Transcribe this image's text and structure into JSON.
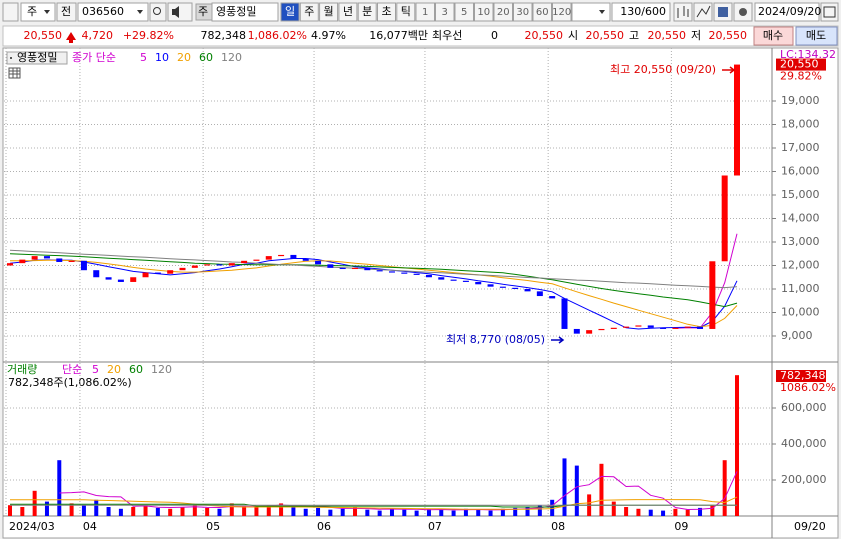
{
  "toolbar": {
    "market": "주",
    "scope": "전",
    "code": "036560",
    "name_tag": "주",
    "name": "영풍정밀",
    "periods": [
      "일",
      "주",
      "월",
      "년",
      "분",
      "초",
      "틱"
    ],
    "selected_period": 0,
    "intervals": [
      "1",
      "3",
      "5",
      "10",
      "20",
      "30",
      "60",
      "120"
    ],
    "count": "130/600",
    "date": "2024/09/20"
  },
  "info_bar": {
    "price": "20,550",
    "change": "4,720",
    "change_pct": "+29.82%",
    "volume": "782,348",
    "volume_pct": "1,086.02%",
    "turnover": "4.97%",
    "amount": "16,077백만",
    "best_label": "최우선",
    "best_qty": "0",
    "best_price": "20,550",
    "open_label": "시",
    "open": "20,550",
    "high_label": "고",
    "high": "20,550",
    "low_label": "저",
    "low": "20,550",
    "buy": "매수",
    "sell": "매도"
  },
  "chart_data": [
    {
      "type": "candlestick",
      "title": "영풍정밀",
      "legend_label": "종가 단순",
      "up_color": "#ff0000",
      "down_color": "#0000ff",
      "open": [
        12000,
        12100,
        12250,
        12400,
        12300,
        12150,
        12200,
        11800,
        11500,
        11400,
        11300,
        11500,
        11700,
        11650,
        11800,
        11900,
        12000,
        12050,
        12000,
        12100,
        12200,
        12250,
        12400,
        12450,
        12300,
        12200,
        12050,
        11900,
        11850,
        11900,
        11800,
        11750,
        11700,
        11650,
        11600,
        11500,
        11400,
        11350,
        11300,
        11200,
        11100,
        11050,
        11000,
        10900,
        10700,
        10600,
        9300,
        9100,
        9250,
        9300,
        9350,
        9400,
        9450,
        9350,
        9300,
        9350,
        9400,
        9300,
        12180,
        15830
      ],
      "close": [
        12100,
        12250,
        12400,
        12300,
        12150,
        12200,
        11800,
        11500,
        11400,
        11300,
        11500,
        11700,
        11650,
        11800,
        11900,
        12000,
        12050,
        12000,
        12100,
        12200,
        12250,
        12400,
        12450,
        12300,
        12200,
        12050,
        11900,
        11850,
        11900,
        11800,
        11750,
        11700,
        11650,
        11600,
        11500,
        11400,
        11350,
        11300,
        11200,
        11100,
        11050,
        11000,
        10900,
        10700,
        10600,
        9300,
        9100,
        9250,
        9300,
        9350,
        9400,
        9450,
        9350,
        9300,
        9350,
        9400,
        9300,
        12180,
        15830,
        20550
      ],
      "series": [
        {
          "name": "5",
          "color": "#d000d0",
          "values": [
            null,
            null,
            null,
            null,
            null,
            null,
            null,
            null,
            null,
            null,
            null,
            null,
            null,
            null,
            null,
            null,
            null,
            null,
            null,
            null,
            null,
            null,
            null,
            null,
            null,
            null,
            null,
            null,
            null,
            null,
            null,
            null,
            null,
            null,
            null,
            null,
            null,
            null,
            null,
            null,
            null,
            null,
            null,
            null,
            null,
            null,
            null,
            null,
            null,
            null,
            null,
            null,
            null,
            null,
            9330,
            9350,
            9340,
            10010,
            11270,
            13350
          ]
        },
        {
          "name": "10",
          "color": "#0000ff",
          "values": [
            12100,
            12150,
            12220,
            12240,
            12230,
            12220,
            12150,
            12050,
            11950,
            11850,
            11750,
            11700,
            11650,
            11600,
            11650,
            11700,
            11780,
            11850,
            11950,
            12050,
            12100,
            12200,
            12250,
            12300,
            12300,
            12250,
            12150,
            12050,
            11950,
            11900,
            11850,
            11800,
            11750,
            11700,
            11650,
            11570,
            11500,
            11430,
            11350,
            11280,
            11200,
            11130,
            11060,
            10980,
            10880,
            10600,
            10350,
            10100,
            9850,
            9600,
            9350,
            9300,
            9330,
            9350,
            9360,
            9370,
            9360,
            9630,
            10270,
            11350
          ]
        },
        {
          "name": "20",
          "color": "#f0a000",
          "values": [
            12200,
            12200,
            12210,
            12220,
            12220,
            12210,
            12180,
            12130,
            12070,
            12000,
            11920,
            11850,
            11800,
            11750,
            11720,
            11720,
            11740,
            11770,
            11800,
            11850,
            11900,
            11980,
            12050,
            12120,
            12180,
            12200,
            12190,
            12150,
            12100,
            12050,
            12000,
            11950,
            11900,
            11850,
            11800,
            11750,
            11700,
            11650,
            11600,
            11550,
            11480,
            11420,
            11360,
            11290,
            11220,
            11050,
            10880,
            10720,
            10560,
            10400,
            10250,
            10100,
            9950,
            9800,
            9650,
            9500,
            9400,
            9450,
            9750,
            10300
          ]
        },
        {
          "name": "60",
          "color": "#008000",
          "values": [
            12500,
            12480,
            12460,
            12440,
            12420,
            12400,
            12370,
            12340,
            12310,
            12280,
            12250,
            12220,
            12190,
            12160,
            12130,
            12100,
            12080,
            12060,
            12050,
            12040,
            12030,
            12030,
            12030,
            12030,
            12020,
            12010,
            12000,
            11990,
            11980,
            11960,
            11940,
            11920,
            11900,
            11880,
            11860,
            11840,
            11810,
            11780,
            11750,
            11720,
            11690,
            11620,
            11550,
            11470,
            11390,
            11300,
            11200,
            11110,
            11020,
            10940,
            10870,
            10800,
            10730,
            10660,
            10600,
            10540,
            10450,
            10350,
            10250,
            10400
          ]
        },
        {
          "name": "120",
          "color": "#808080",
          "values": [
            12650,
            12620,
            12590,
            12570,
            12540,
            12510,
            12480,
            12460,
            12430,
            12400,
            12370,
            12350,
            12320,
            12290,
            12260,
            12240,
            12210,
            12180,
            12150,
            12130,
            12100,
            12070,
            12040,
            12020,
            11990,
            11960,
            11930,
            11910,
            11880,
            11850,
            11820,
            11800,
            11770,
            11740,
            11710,
            11690,
            11660,
            11630,
            11600,
            11580,
            11550,
            11520,
            11490,
            11470,
            11440,
            11410,
            11380,
            11360,
            11330,
            11300,
            11270,
            11250,
            11220,
            11190,
            11160,
            11140,
            11110,
            11080,
            11060,
            11100
          ]
        }
      ],
      "ylim": [
        7979,
        21170
      ],
      "yticks": [
        {
          "value": 9000,
          "label": "9,000"
        },
        {
          "value": 10000,
          "label": "10,000"
        },
        {
          "value": 11000,
          "label": "11,000"
        },
        {
          "value": 12000,
          "label": "12,000"
        },
        {
          "value": 13000,
          "label": "13,000"
        },
        {
          "value": 14000,
          "label": "14,000"
        },
        {
          "value": 15000,
          "label": "15,000"
        },
        {
          "value": 16000,
          "label": "16,000"
        },
        {
          "value": 17000,
          "label": "17,000"
        },
        {
          "value": 18000,
          "label": "18,000"
        },
        {
          "value": 19000,
          "label": "19,000"
        }
      ],
      "grid": true,
      "top_label": "LC:134.32",
      "last_price_label": "20,550",
      "last_change_label": "29.82%",
      "annotations": [
        {
          "text": "최고 20,550 (09/20)",
          "color": "#e00000"
        },
        {
          "text": "최저 8,770 (08/05)",
          "color": "#0000c0"
        }
      ]
    },
    {
      "type": "bar",
      "title": "거래량",
      "legend_label": "단순",
      "summary": "782,348주(1,086.02%)",
      "values": [
        60000,
        50000,
        140000,
        80000,
        310000,
        70000,
        60000,
        90000,
        50000,
        40000,
        50000,
        60000,
        45000,
        40000,
        50000,
        60000,
        45000,
        40000,
        70000,
        55000,
        50000,
        60000,
        70000,
        50000,
        40000,
        45000,
        35000,
        40000,
        50000,
        35000,
        30000,
        40000,
        35000,
        30000,
        40000,
        35000,
        30000,
        40000,
        35000,
        30000,
        40000,
        45000,
        50000,
        60000,
        90000,
        320000,
        280000,
        120000,
        290000,
        80000,
        50000,
        40000,
        35000,
        30000,
        40000,
        35000,
        45000,
        60000,
        310000,
        782348
      ],
      "series": [
        {
          "name": "5",
          "color": "#d000d0",
          "values": [
            null,
            null,
            null,
            null,
            128000,
            130000,
            134000,
            114000,
            108000,
            106000,
            54000,
            56000,
            49000,
            47000,
            49000,
            51000,
            48000,
            47000,
            53000,
            52000,
            52000,
            55000,
            61000,
            57000,
            54000,
            53000,
            48000,
            42000,
            42000,
            41000,
            38000,
            39000,
            38000,
            37000,
            35000,
            36000,
            34000,
            35000,
            36000,
            34000,
            35000,
            38000,
            40000,
            45000,
            57000,
            113000,
            162000,
            174000,
            220000,
            218000,
            164000,
            166000,
            115000,
            99000,
            47000,
            36000,
            37000,
            43000,
            98000,
            248000
          ]
        },
        {
          "name": "20",
          "color": "#f0a000",
          "values": [
            90000,
            90000,
            90000,
            90000,
            90000,
            90000,
            90000,
            88000,
            86000,
            84000,
            82000,
            80000,
            78000,
            76000,
            72000,
            65000,
            60000,
            55000,
            52000,
            50000,
            50000,
            50000,
            50000,
            50000,
            50000,
            49000,
            48000,
            47000,
            46000,
            45000,
            44000,
            43000,
            42000,
            41000,
            40000,
            40000,
            39000,
            38000,
            38000,
            37000,
            37000,
            38000,
            38000,
            39000,
            41000,
            55000,
            68000,
            73000,
            87000,
            89000,
            90000,
            91000,
            91000,
            91000,
            91000,
            91000,
            90000,
            80000,
            75000,
            105000
          ]
        },
        {
          "name": "60",
          "color": "#008000",
          "values": [
            65000,
            65000,
            65000,
            65000,
            65000,
            65000,
            65000,
            65000,
            65000,
            65000,
            65000,
            65000,
            65000,
            65000,
            65000,
            65000,
            65000,
            65000,
            65000,
            65000,
            55000,
            55000,
            55000,
            55000,
            55000,
            55000,
            55000,
            55000,
            55000,
            55000,
            55000,
            55000,
            55000,
            55000,
            55000,
            55000,
            55000,
            55000,
            55000,
            55000,
            50000,
            50000,
            50000,
            50000,
            50000,
            60000,
            60000,
            60000,
            60000,
            60000,
            60000,
            60000,
            60000,
            60000,
            60000,
            60000,
            60000,
            60000,
            60000,
            60000
          ]
        },
        {
          "name": "120",
          "color": "#808080",
          "values": [
            60000,
            60000,
            60000,
            60000,
            60000,
            60000,
            60000,
            60000,
            60000,
            60000,
            60000,
            60000,
            60000,
            60000,
            60000,
            60000,
            60000,
            60000,
            60000,
            60000,
            60000,
            60000,
            60000,
            60000,
            60000,
            60000,
            60000,
            60000,
            60000,
            60000,
            60000,
            60000,
            60000,
            60000,
            60000,
            60000,
            60000,
            60000,
            60000,
            60000,
            60000,
            60000,
            60000,
            60000,
            60000,
            60000,
            60000,
            60000,
            60000,
            60000,
            60000,
            60000,
            60000,
            60000,
            60000,
            60000,
            60000,
            60000,
            60000,
            60000
          ]
        }
      ],
      "ylim": [
        0,
        833333
      ],
      "yticks": [
        {
          "value": 200000,
          "label": "200,000"
        },
        {
          "value": 400000,
          "label": "400,000"
        },
        {
          "value": 600000,
          "label": "600,000"
        }
      ],
      "grid": true,
      "last_value_label": "782,348",
      "last_pct_label": "1086.02%"
    }
  ],
  "x_axis": {
    "ticks": [
      {
        "value": 0,
        "label": "2024/03"
      },
      {
        "value": 6,
        "label": "04"
      },
      {
        "value": 16,
        "label": "05"
      },
      {
        "value": 25,
        "label": "06"
      },
      {
        "value": 34,
        "label": "07"
      },
      {
        "value": 44,
        "label": "08"
      },
      {
        "value": 54,
        "label": "09"
      }
    ],
    "last_label": "09/20"
  }
}
